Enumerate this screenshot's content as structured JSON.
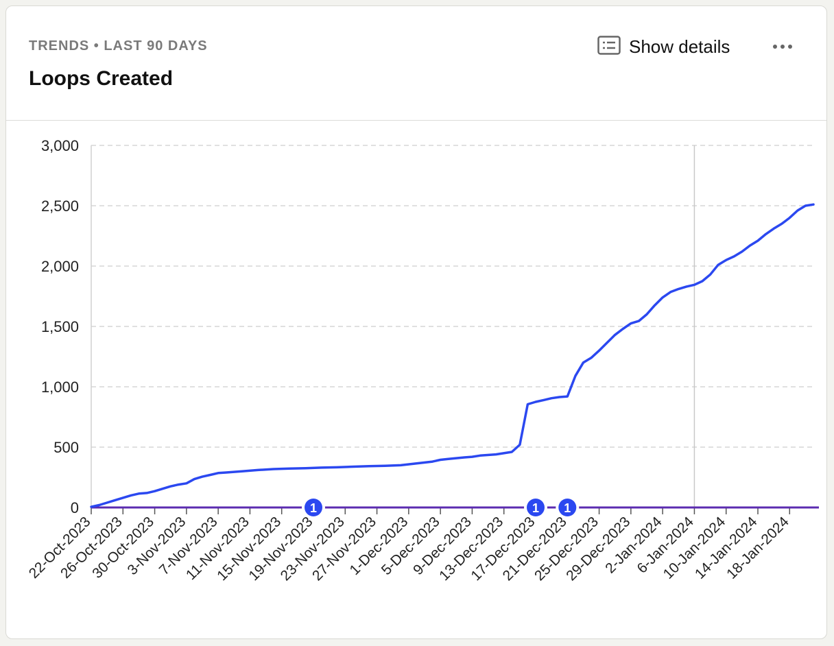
{
  "header": {
    "eyebrow": "TRENDS • LAST 90 DAYS",
    "title": "Loops Created",
    "details_label": "Show details",
    "details_icon": "list-details-icon",
    "more_icon": "more-horizontal-icon"
  },
  "colors": {
    "series": "#2b48f0",
    "baseline": "#5b2bb0",
    "marker": "#2b48f0",
    "grid": "#d6d6d6"
  },
  "chart_data": {
    "type": "line",
    "title": "Loops Created",
    "xlabel": "",
    "ylabel": "",
    "ylim": [
      0,
      3000
    ],
    "x_range": [
      "2023-10-22",
      "2024-01-21"
    ],
    "grid": true,
    "yticks": [
      0,
      500,
      1000,
      1500,
      2000,
      2500,
      3000
    ],
    "ytick_labels": [
      "0",
      "500",
      "1,000",
      "1,500",
      "2,000",
      "2,500",
      "3,000"
    ],
    "xtick_dates": [
      "2023-10-22",
      "2023-10-26",
      "2023-10-30",
      "2023-11-03",
      "2023-11-07",
      "2023-11-11",
      "2023-11-15",
      "2023-11-19",
      "2023-11-23",
      "2023-11-27",
      "2023-12-01",
      "2023-12-05",
      "2023-12-09",
      "2023-12-13",
      "2023-12-17",
      "2023-12-21",
      "2023-12-25",
      "2023-12-29",
      "2024-01-02",
      "2024-01-06",
      "2024-01-10",
      "2024-01-14",
      "2024-01-18"
    ],
    "xtick_labels": [
      "22-Oct-2023",
      "26-Oct-2023",
      "30-Oct-2023",
      "3-Nov-2023",
      "7-Nov-2023",
      "11-Nov-2023",
      "15-Nov-2023",
      "19-Nov-2023",
      "23-Nov-2023",
      "27-Nov-2023",
      "1-Dec-2023",
      "5-Dec-2023",
      "9-Dec-2023",
      "13-Dec-2023",
      "17-Dec-2023",
      "21-Dec-2023",
      "25-Dec-2023",
      "29-Dec-2023",
      "2-Jan-2024",
      "6-Jan-2024",
      "10-Jan-2024",
      "14-Jan-2024",
      "18-Jan-2024"
    ],
    "vertical_marker_date": "2024-01-06",
    "series": [
      {
        "x": [
          "2023-10-22",
          "2023-10-23",
          "2023-10-24",
          "2023-10-25",
          "2023-10-26",
          "2023-10-27",
          "2023-10-28",
          "2023-10-29",
          "2023-10-30",
          "2023-10-31",
          "2023-11-01",
          "2023-11-02",
          "2023-11-03",
          "2023-11-04",
          "2023-11-05",
          "2023-11-06",
          "2023-11-07",
          "2023-11-08",
          "2023-11-09",
          "2023-11-10",
          "2023-11-12",
          "2023-11-14",
          "2023-11-16",
          "2023-11-18",
          "2023-11-20",
          "2023-11-22",
          "2023-11-24",
          "2023-11-26",
          "2023-11-28",
          "2023-11-30",
          "2023-12-02",
          "2023-12-04",
          "2023-12-05",
          "2023-12-06",
          "2023-12-08",
          "2023-12-09",
          "2023-12-10",
          "2023-12-12",
          "2023-12-14",
          "2023-12-15",
          "2023-12-16",
          "2023-12-17",
          "2023-12-18",
          "2023-12-19",
          "2023-12-20",
          "2023-12-21",
          "2023-12-22",
          "2023-12-23",
          "2023-12-24",
          "2023-12-25",
          "2023-12-26",
          "2023-12-27",
          "2023-12-28",
          "2023-12-29",
          "2023-12-30",
          "2023-12-31",
          "2024-01-01",
          "2024-01-02",
          "2024-01-03",
          "2024-01-04",
          "2024-01-05",
          "2024-01-06",
          "2024-01-07",
          "2024-01-08",
          "2024-01-09",
          "2024-01-10",
          "2024-01-11",
          "2024-01-12",
          "2024-01-13",
          "2024-01-14",
          "2024-01-15",
          "2024-01-16",
          "2024-01-17",
          "2024-01-18",
          "2024-01-19",
          "2024-01-20",
          "2024-01-21"
        ],
        "y": [
          5,
          20,
          40,
          60,
          80,
          100,
          115,
          120,
          135,
          155,
          175,
          190,
          200,
          235,
          255,
          270,
          285,
          290,
          295,
          300,
          310,
          318,
          322,
          325,
          330,
          333,
          338,
          342,
          345,
          350,
          365,
          380,
          395,
          402,
          415,
          420,
          430,
          440,
          460,
          520,
          855,
          875,
          890,
          905,
          915,
          920,
          1090,
          1200,
          1240,
          1300,
          1365,
          1430,
          1480,
          1525,
          1545,
          1600,
          1675,
          1740,
          1785,
          1810,
          1830,
          1845,
          1875,
          1930,
          2010,
          2050,
          2080,
          2120,
          2170,
          2210,
          2265,
          2310,
          2350,
          2400,
          2460,
          2500,
          2510
        ],
        "color": "#2b48f0"
      }
    ],
    "annotations": [
      {
        "date": "2023-11-19",
        "label": "1"
      },
      {
        "date": "2023-12-17",
        "label": "1"
      },
      {
        "date": "2023-12-21",
        "label": "1"
      }
    ]
  }
}
